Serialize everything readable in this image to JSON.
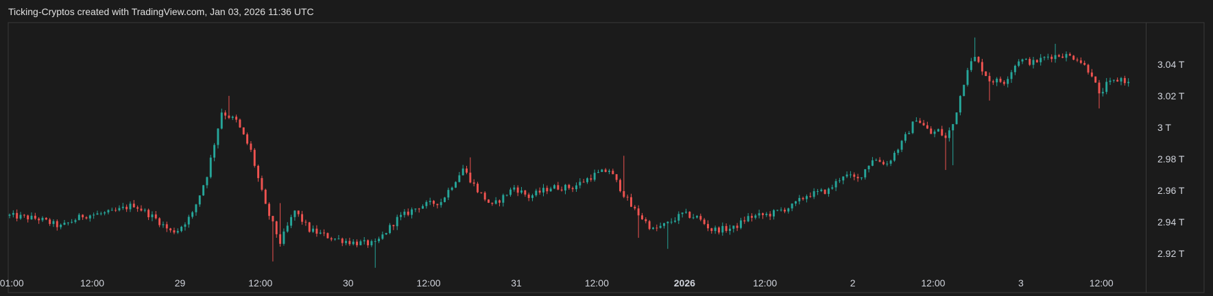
{
  "header": {
    "title": "Ticking-Cryptos created with TradingView.com, Jan 03, 2026 11:36 UTC"
  },
  "colors": {
    "up": "#26a69a",
    "down": "#ef5350",
    "background": "#1b1b1b",
    "frame": "#3a3a3a",
    "text": "#d1d4dc"
  },
  "chart_data": {
    "type": "candlestick",
    "unit": "T",
    "ylim": [
      2.907,
      3.066
    ],
    "y_ticks": [
      {
        "value": 3.04,
        "label": "3.04 T"
      },
      {
        "value": 3.02,
        "label": "3.02 T"
      },
      {
        "value": 3.0,
        "label": "3 T"
      },
      {
        "value": 2.98,
        "label": "2.98 T"
      },
      {
        "value": 2.96,
        "label": "2.96 T"
      },
      {
        "value": 2.94,
        "label": "2.94 T"
      },
      {
        "value": 2.92,
        "label": "2.92 T"
      }
    ],
    "x_ticks": [
      {
        "label": "01:00",
        "x": 0.3,
        "bold": false
      },
      {
        "label": "12:00",
        "x": 11.3,
        "bold": false
      },
      {
        "label": "29",
        "x": 23.3,
        "bold": false
      },
      {
        "label": "12:00",
        "x": 34.3,
        "bold": false
      },
      {
        "label": "30",
        "x": 46.3,
        "bold": false
      },
      {
        "label": "12:00",
        "x": 57.3,
        "bold": false
      },
      {
        "label": "31",
        "x": 69.3,
        "bold": false
      },
      {
        "label": "12:00",
        "x": 80.3,
        "bold": false
      },
      {
        "label": "2026",
        "x": 92.3,
        "bold": true
      },
      {
        "label": "12:00",
        "x": 103.3,
        "bold": false
      },
      {
        "label": "2",
        "x": 115.3,
        "bold": false
      },
      {
        "label": "12:00",
        "x": 126.3,
        "bold": false
      },
      {
        "label": "3",
        "x": 138.3,
        "bold": false
      },
      {
        "label": "12:00",
        "x": 149.3,
        "bold": false
      }
    ],
    "x_range": [
      0,
      155
    ],
    "anchors": [
      [
        0,
        2.944
      ],
      [
        4,
        2.942
      ],
      [
        7,
        2.937
      ],
      [
        10,
        2.944
      ],
      [
        14,
        2.946
      ],
      [
        17,
        2.951
      ],
      [
        20,
        2.942
      ],
      [
        22,
        2.934
      ],
      [
        23,
        2.935
      ],
      [
        25,
        2.945
      ],
      [
        27,
        2.97
      ],
      [
        29,
        3.01
      ],
      [
        31,
        3.004
      ],
      [
        33,
        2.985
      ],
      [
        35,
        2.95
      ],
      [
        37,
        2.927
      ],
      [
        39,
        2.947
      ],
      [
        41,
        2.935
      ],
      [
        44,
        2.93
      ],
      [
        47,
        2.927
      ],
      [
        50,
        2.926
      ],
      [
        53,
        2.942
      ],
      [
        56,
        2.95
      ],
      [
        59,
        2.953
      ],
      [
        62,
        2.974
      ],
      [
        64,
        2.96
      ],
      [
        66,
        2.95
      ],
      [
        69,
        2.962
      ],
      [
        71,
        2.956
      ],
      [
        74,
        2.962
      ],
      [
        77,
        2.962
      ],
      [
        80,
        2.97
      ],
      [
        82,
        2.973
      ],
      [
        85,
        2.95
      ],
      [
        88,
        2.935
      ],
      [
        90,
        2.939
      ],
      [
        92,
        2.945
      ],
      [
        94,
        2.943
      ],
      [
        96,
        2.935
      ],
      [
        99,
        2.936
      ],
      [
        101,
        2.943
      ],
      [
        104,
        2.945
      ],
      [
        107,
        2.95
      ],
      [
        109,
        2.957
      ],
      [
        112,
        2.96
      ],
      [
        114,
        2.97
      ],
      [
        116,
        2.967
      ],
      [
        118,
        2.98
      ],
      [
        120,
        2.977
      ],
      [
        122,
        2.99
      ],
      [
        124,
        3.006
      ],
      [
        126,
        2.996
      ],
      [
        127,
        2.998
      ],
      [
        128,
        2.993
      ],
      [
        129,
        3.002
      ],
      [
        131,
        3.038
      ],
      [
        132,
        3.044
      ],
      [
        134,
        3.03
      ],
      [
        136,
        3.029
      ],
      [
        138,
        3.043
      ],
      [
        140,
        3.041
      ],
      [
        142,
        3.045
      ],
      [
        144,
        3.046
      ],
      [
        146,
        3.044
      ],
      [
        148,
        3.034
      ],
      [
        149,
        3.02
      ],
      [
        150,
        3.027
      ],
      [
        152,
        3.031
      ],
      [
        153,
        3.028
      ]
    ],
    "spikes": [
      {
        "i": 30,
        "high": 3.02
      },
      {
        "i": 36,
        "low": 2.915
      },
      {
        "i": 37,
        "high": 2.952
      },
      {
        "i": 50,
        "low": 2.911
      },
      {
        "i": 63,
        "high": 2.981
      },
      {
        "i": 84,
        "high": 2.982
      },
      {
        "i": 86,
        "low": 2.93
      },
      {
        "i": 90,
        "low": 2.923
      },
      {
        "i": 128,
        "low": 2.973
      },
      {
        "i": 129,
        "low": 2.976
      },
      {
        "i": 132,
        "high": 3.057
      },
      {
        "i": 134,
        "low": 3.017
      },
      {
        "i": 143,
        "high": 3.053
      },
      {
        "i": 149,
        "low": 3.012
      }
    ]
  }
}
